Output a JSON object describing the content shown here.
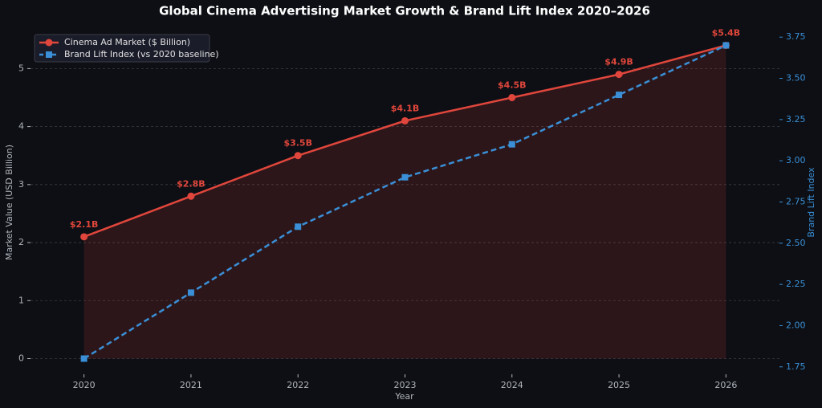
{
  "chart_data": {
    "type": "line",
    "title": "Global Cinema Advertising Market Growth & Brand Lift Index 2020–2026",
    "x_label": "Year",
    "y_label": "Market Value (USD Billion)",
    "y2_label": "Brand Lift Index",
    "x": [
      2020,
      2021,
      2022,
      2023,
      2024,
      2025,
      2026
    ],
    "xlim": [
      2019.5,
      2026.5
    ],
    "xticks": [
      2020,
      2021,
      2022,
      2023,
      2024,
      2025,
      2026
    ],
    "ylim": [
      -0.27,
      5.67
    ],
    "yticks": [
      0,
      1,
      2,
      3,
      4,
      5
    ],
    "y2lim": [
      1.705,
      3.795
    ],
    "y2ticks": [
      {
        "value": 1.75,
        "label": "1.75"
      },
      {
        "value": 2.0,
        "label": "2.00"
      },
      {
        "value": 2.25,
        "label": "2.25"
      },
      {
        "value": 2.5,
        "label": "2.50"
      },
      {
        "value": 2.75,
        "label": "2.75"
      },
      {
        "value": 3.0,
        "label": "3.00"
      },
      {
        "value": 3.25,
        "label": "3.25"
      },
      {
        "value": 3.5,
        "label": "3.50"
      },
      {
        "value": 3.75,
        "label": "3.75"
      }
    ],
    "grid": true,
    "legend": "upper left",
    "series": [
      {
        "name": "Cinema Ad Market ($ Billion)",
        "color": "#e0463c",
        "values": [
          2.1,
          2.8,
          3.5,
          4.1,
          4.5,
          4.9,
          5.4
        ],
        "value_labels": [
          "$2.1B",
          "$2.8B",
          "$3.5B",
          "$4.1B",
          "$4.5B",
          "$4.9B",
          "$5.4B"
        ],
        "fill": true
      },
      {
        "name": "Brand Lift Index (vs 2020 baseline)",
        "color": "#3a8fd6",
        "values": [
          1.8,
          2.2,
          2.6,
          2.9,
          3.1,
          3.4,
          3.7
        ],
        "axis": "y2",
        "dashed": true
      }
    ]
  }
}
